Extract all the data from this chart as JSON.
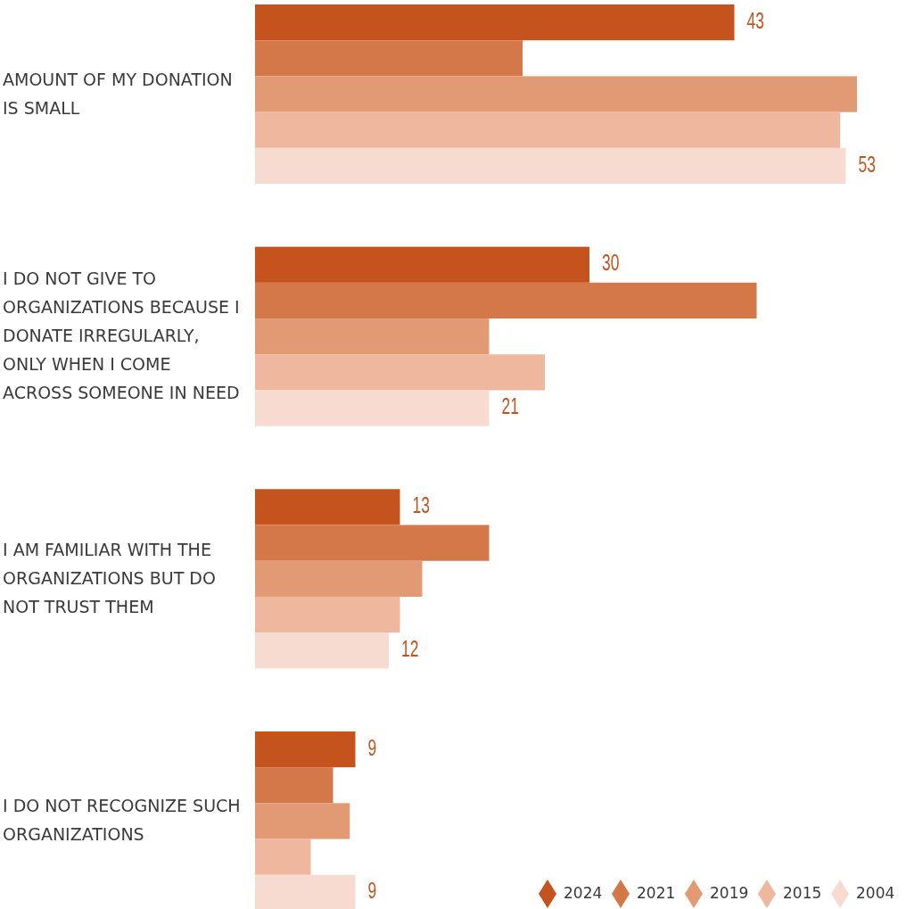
{
  "chart_data": {
    "type": "bar",
    "orientation": "horizontal",
    "legend": "bottom right",
    "categories": [
      "AMOUNT OF MY DONATION IS SMALL",
      "I DO NOT GIVE TO ORGANIZATIONS BECAUSE I DONATE IRREGULARLY, ONLY WHEN I COME ACROSS SOMEONE IN NEED",
      "I AM FAMILIAR WITH THE ORGANIZATIONS BUT DO NOT TRUST THEM",
      "I DO NOT RECOGNIZE SUCH ORGANIZATIONS"
    ],
    "series": [
      {
        "name": "2024",
        "color": "#c4531d",
        "values": [
          43,
          30,
          13,
          9
        ],
        "value_labels": [
          "43",
          "30",
          "13",
          "9"
        ]
      },
      {
        "name": "2021",
        "color": "#d4784a",
        "values": [
          24,
          45,
          21,
          7
        ]
      },
      {
        "name": "2019",
        "color": "#e29a74",
        "values": [
          54,
          21,
          15,
          8.5
        ]
      },
      {
        "name": "2015",
        "color": "#efb89e",
        "values": [
          52.5,
          26,
          13,
          5
        ]
      },
      {
        "name": "2004",
        "color": "#f7dbd0",
        "values": [
          53,
          21,
          12,
          9
        ],
        "value_labels": [
          "53",
          "21",
          "12",
          "9"
        ]
      }
    ]
  }
}
